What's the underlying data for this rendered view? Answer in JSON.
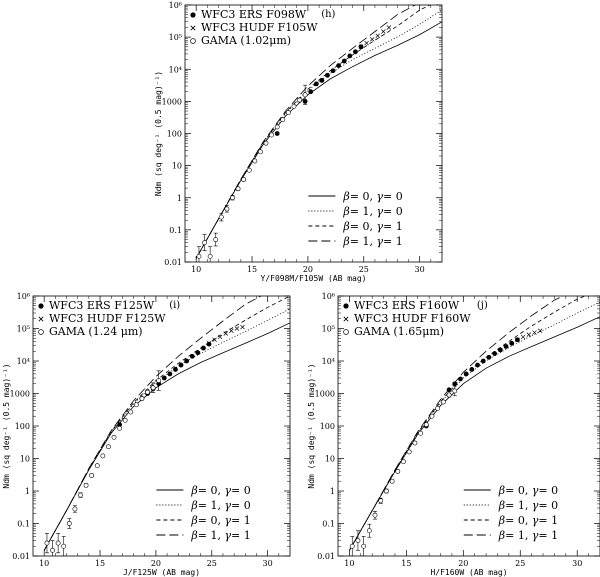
{
  "chart_data": [
    {
      "type": "scatter",
      "panel_tag": "(h)",
      "xlabel": "Y/F098M/F105W (AB mag)",
      "ylabel": "Ndm (sq deg⁻¹ (0.5 mag)⁻¹)",
      "xlim": [
        9,
        32
      ],
      "ylim_log10": [
        -2,
        6
      ],
      "yscale": "log",
      "x_ticks": [
        "10",
        "15",
        "20",
        "25",
        "30"
      ],
      "y_ticks": [
        "0.01",
        "0.1",
        "1",
        "10",
        "100",
        "1000",
        "10⁴",
        "10⁵",
        "10⁶"
      ],
      "legend_top": [
        {
          "marker": "filled-circle",
          "label": "WFC3 ERS F098W"
        },
        {
          "marker": "cross",
          "label": "WFC3 HUDF F105W"
        },
        {
          "marker": "open-circle",
          "label": "GAMA (1.02μm)"
        }
      ],
      "legend_bottom": [
        {
          "dash": "solid",
          "beta": "0",
          "gamma": "0"
        },
        {
          "dash": "dotted",
          "beta": "1",
          "gamma": "0"
        },
        {
          "dash": "short-dash",
          "beta": "0",
          "gamma": "1"
        },
        {
          "dash": "long-dash",
          "beta": "1",
          "gamma": "1"
        }
      ],
      "series": [
        {
          "name": "WFC3 ERS F098W",
          "marker": "filled-circle",
          "x": [
            17.25,
            19.75,
            20.25,
            20.75,
            21.25,
            21.75,
            22.25,
            22.75,
            23.25,
            23.75,
            24.25,
            24.75
          ],
          "y": [
            100,
            1000,
            2000,
            3500,
            4500,
            6500,
            9000,
            13000,
            18000,
            26000,
            35000,
            50000
          ]
        },
        {
          "name": "WFC3 HUDF F105W",
          "marker": "cross",
          "x": [
            24.75,
            25.25,
            25.75,
            26.25,
            26.75,
            27.25
          ],
          "y": [
            50000,
            65000,
            85000,
            110000,
            150000,
            200000
          ]
        },
        {
          "name": "GAMA (1.02μm)",
          "marker": "open-circle",
          "x": [
            10.25,
            10.75,
            11.25,
            11.75,
            12.25,
            12.75,
            13.25,
            13.75,
            14.25,
            14.75,
            15.25,
            15.75,
            16.25,
            16.75,
            17.25,
            17.75,
            18.25,
            18.75,
            19.25,
            19.75
          ],
          "y": [
            0.015,
            0.04,
            0.015,
            0.05,
            0.25,
            0.45,
            1,
            1.9,
            3.7,
            7.2,
            14,
            27,
            50,
            90,
            160,
            270,
            450,
            700,
            1100,
            1600
          ],
          "yerr_dex": [
            0.3,
            0.25,
            0.3,
            0.2,
            0.12,
            0.1,
            0.07,
            0.05,
            0.04,
            0.03,
            0.02,
            0.02,
            0.02,
            0.02,
            0.02,
            0.02,
            0.02,
            0.03,
            0.06,
            0.3
          ]
        }
      ],
      "models": [
        {
          "dash": "solid",
          "x": [
            10,
            12,
            14,
            16,
            18,
            20,
            22,
            24,
            26,
            28,
            30,
            32
          ],
          "y": [
            0.013,
            0.22,
            3.5,
            45,
            350,
            1600,
            5000,
            12000,
            27000,
            55000,
            120000,
            300000
          ]
        },
        {
          "dash": "dotted",
          "x": [
            10,
            12,
            14,
            16,
            18,
            20,
            22,
            24,
            26,
            28,
            30,
            32
          ],
          "y": [
            0.013,
            0.22,
            3.7,
            50,
            420,
            2200,
            7500,
            20000,
            45000,
            100000,
            250000,
            700000
          ]
        },
        {
          "dash": "short-dash",
          "x": [
            10,
            12,
            14,
            16,
            18,
            20,
            22,
            24,
            26,
            28,
            30,
            32
          ],
          "y": [
            0.013,
            0.22,
            3.7,
            52,
            450,
            2400,
            9000,
            28000,
            80000,
            220000,
            700000,
            1500000
          ]
        },
        {
          "dash": "long-dash",
          "x": [
            10,
            12,
            14,
            16,
            18,
            20,
            22,
            24,
            26,
            28,
            30,
            32
          ],
          "y": [
            0.013,
            0.22,
            3.8,
            55,
            500,
            3000,
            13000,
            45000,
            150000,
            500000,
            1200000,
            2000000
          ]
        }
      ]
    },
    {
      "type": "scatter",
      "panel_tag": "(i)",
      "xlabel": "J/F125W (AB mag)",
      "ylabel": "Ndm (sq deg⁻¹ (0.5 mag)⁻¹)",
      "xlim": [
        9,
        32
      ],
      "ylim_log10": [
        -2,
        6
      ],
      "yscale": "log",
      "x_ticks": [
        "10",
        "15",
        "20",
        "25",
        "30"
      ],
      "y_ticks": [
        "0.01",
        "0.1",
        "1",
        "10",
        "100",
        "1000",
        "10⁴",
        "10⁵",
        "10⁶"
      ],
      "legend_top": [
        {
          "marker": "filled-circle",
          "label": "WFC3 ERS F125W"
        },
        {
          "marker": "cross",
          "label": "WFC3 HUDF F125W"
        },
        {
          "marker": "open-circle",
          "label": "GAMA (1.24 μm)"
        }
      ],
      "legend_bottom": [
        {
          "dash": "solid",
          "beta": "0",
          "gamma": "0"
        },
        {
          "dash": "dotted",
          "beta": "1",
          "gamma": "0"
        },
        {
          "dash": "short-dash",
          "beta": "0",
          "gamma": "1"
        },
        {
          "dash": "long-dash",
          "beta": "1",
          "gamma": "1"
        }
      ],
      "series": [
        {
          "name": "WFC3 ERS F125W",
          "marker": "filled-circle",
          "x": [
            16.75,
            18.75,
            19.25,
            19.75,
            20.25,
            20.75,
            21.25,
            21.75,
            22.25,
            22.75,
            23.25,
            23.75,
            24.25,
            24.75
          ],
          "y": [
            110,
            700,
            1000,
            1400,
            2000,
            3000,
            4000,
            5500,
            7500,
            10000,
            14000,
            18000,
            25000,
            33000
          ]
        },
        {
          "name": "WFC3 HUDF F125W",
          "marker": "cross",
          "x": [
            24.75,
            25.25,
            25.75,
            26.25,
            26.75,
            27.25,
            27.75
          ],
          "y": [
            35000,
            45000,
            55000,
            70000,
            85000,
            100000,
            110000
          ]
        },
        {
          "name": "GAMA (1.24 μm)",
          "marker": "open-circle",
          "x": [
            10.25,
            10.75,
            11.25,
            11.75,
            12.25,
            12.75,
            13.25,
            13.75,
            14.25,
            14.75,
            15.25,
            15.75,
            16.25,
            16.75,
            17.25,
            17.75,
            18.25,
            18.75,
            19.25,
            19.75,
            20.25
          ],
          "y": [
            0.025,
            0.015,
            0.025,
            0.02,
            0.1,
            0.28,
            0.75,
            1.5,
            3,
            6,
            12,
            23,
            45,
            85,
            150,
            270,
            450,
            700,
            1100,
            1500,
            2500
          ],
          "yerr_dex": [
            0.3,
            0.3,
            0.3,
            0.3,
            0.15,
            0.1,
            0.07,
            0.05,
            0.04,
            0.03,
            0.02,
            0.02,
            0.02,
            0.02,
            0.02,
            0.02,
            0.03,
            0.04,
            0.06,
            0.15,
            0.3
          ]
        }
      ],
      "models": [
        {
          "dash": "solid",
          "x": [
            10,
            12,
            14,
            16,
            18,
            20,
            22,
            24,
            26,
            28,
            30,
            32
          ],
          "y": [
            0.015,
            0.25,
            4.5,
            60,
            400,
            1500,
            4000,
            9000,
            18000,
            35000,
            70000,
            150000
          ]
        },
        {
          "dash": "dotted",
          "x": [
            10,
            12,
            14,
            16,
            18,
            20,
            22,
            24,
            26,
            28,
            30,
            32
          ],
          "y": [
            0.015,
            0.25,
            4.7,
            65,
            480,
            2200,
            7000,
            17000,
            38000,
            80000,
            180000,
            400000
          ]
        },
        {
          "dash": "short-dash",
          "x": [
            10,
            12,
            14,
            16,
            18,
            20,
            22,
            24,
            26,
            28,
            30,
            32
          ],
          "y": [
            0.015,
            0.25,
            4.8,
            68,
            520,
            2500,
            8500,
            25000,
            70000,
            180000,
            450000,
            1000000
          ]
        },
        {
          "dash": "long-dash",
          "x": [
            10,
            12,
            14,
            16,
            18,
            20,
            22,
            24,
            26,
            28,
            30,
            32
          ],
          "y": [
            0.015,
            0.25,
            5,
            72,
            600,
            3300,
            14000,
            50000,
            170000,
            550000,
            1300000,
            2000000
          ]
        }
      ]
    },
    {
      "type": "scatter",
      "panel_tag": "(j)",
      "xlabel": "H/F160W (AB mag)",
      "ylabel": "Ndm (sq deg⁻¹ (0.5 mag)⁻¹)",
      "xlim": [
        9,
        32
      ],
      "ylim_log10": [
        -2,
        6
      ],
      "yscale": "log",
      "x_ticks": [
        "10",
        "15",
        "20",
        "25",
        "30"
      ],
      "y_ticks": [
        "0.01",
        "0.1",
        "1",
        "10",
        "100",
        "1000",
        "10⁴",
        "10⁵",
        "10⁶"
      ],
      "legend_top": [
        {
          "marker": "filled-circle",
          "label": "WFC3 ERS F160W"
        },
        {
          "marker": "cross",
          "label": "WFC3 HUDF F160W"
        },
        {
          "marker": "open-circle",
          "label": "GAMA (1.65μm)"
        }
      ],
      "legend_bottom": [
        {
          "dash": "solid",
          "beta": "0",
          "gamma": "0"
        },
        {
          "dash": "dotted",
          "beta": "1",
          "gamma": "0"
        },
        {
          "dash": "short-dash",
          "beta": "0",
          "gamma": "1"
        },
        {
          "dash": "long-dash",
          "beta": "1",
          "gamma": "1"
        }
      ],
      "series": [
        {
          "name": "WFC3 ERS F160W",
          "marker": "filled-circle",
          "x": [
            16.75,
            18.75,
            19.25,
            19.75,
            20.25,
            20.75,
            21.25,
            21.75,
            22.25,
            22.75,
            23.25,
            23.75,
            24.25,
            24.75
          ],
          "y": [
            100,
            1300,
            2000,
            2800,
            4000,
            5500,
            7500,
            10000,
            13000,
            17000,
            22000,
            28000,
            35000,
            45000
          ]
        },
        {
          "name": "WFC3 HUDF F160W",
          "marker": "cross",
          "x": [
            24.75,
            25.25,
            25.75,
            26.25,
            26.75
          ],
          "y": [
            45000,
            55000,
            65000,
            75000,
            85000
          ]
        },
        {
          "name": "GAMA (1.65μm)",
          "marker": "open-circle",
          "x": [
            10.25,
            10.75,
            11.25,
            11.75,
            12.25,
            12.75,
            13.25,
            13.75,
            14.25,
            14.75,
            15.25,
            15.75,
            16.25,
            16.75,
            17.25,
            17.75,
            18.25,
            18.75,
            19.25
          ],
          "y": [
            0.02,
            0.03,
            0.02,
            0.06,
            0.18,
            0.5,
            1,
            2,
            4,
            8,
            16,
            30,
            60,
            110,
            200,
            350,
            550,
            900,
            1200
          ],
          "yerr_dex": [
            0.3,
            0.3,
            0.3,
            0.2,
            0.12,
            0.08,
            0.06,
            0.05,
            0.04,
            0.03,
            0.02,
            0.02,
            0.02,
            0.02,
            0.02,
            0.03,
            0.04,
            0.06,
            0.15
          ]
        }
      ],
      "models": [
        {
          "dash": "solid",
          "x": [
            10,
            12,
            14,
            16,
            18,
            20,
            22,
            24,
            26,
            28,
            30,
            32
          ],
          "y": [
            0.015,
            0.25,
            4,
            55,
            420,
            2000,
            6000,
            14000,
            28000,
            55000,
            110000,
            230000
          ]
        },
        {
          "dash": "dotted",
          "x": [
            10,
            12,
            14,
            16,
            18,
            20,
            22,
            24,
            26,
            28,
            30,
            32
          ],
          "y": [
            0.015,
            0.25,
            4.2,
            60,
            520,
            3000,
            10000,
            26000,
            60000,
            130000,
            300000,
            650000
          ]
        },
        {
          "dash": "short-dash",
          "x": [
            10,
            12,
            14,
            16,
            18,
            20,
            22,
            24,
            26,
            28,
            30,
            32
          ],
          "y": [
            0.015,
            0.25,
            4.3,
            63,
            560,
            3500,
            13000,
            40000,
            120000,
            320000,
            800000,
            1500000
          ]
        },
        {
          "dash": "long-dash",
          "x": [
            10,
            12,
            14,
            16,
            18,
            20,
            22,
            24,
            26,
            28,
            30,
            32
          ],
          "y": [
            0.015,
            0.25,
            4.5,
            67,
            650,
            4500,
            20000,
            75000,
            250000,
            750000,
            1600000,
            2200000
          ]
        }
      ]
    }
  ]
}
